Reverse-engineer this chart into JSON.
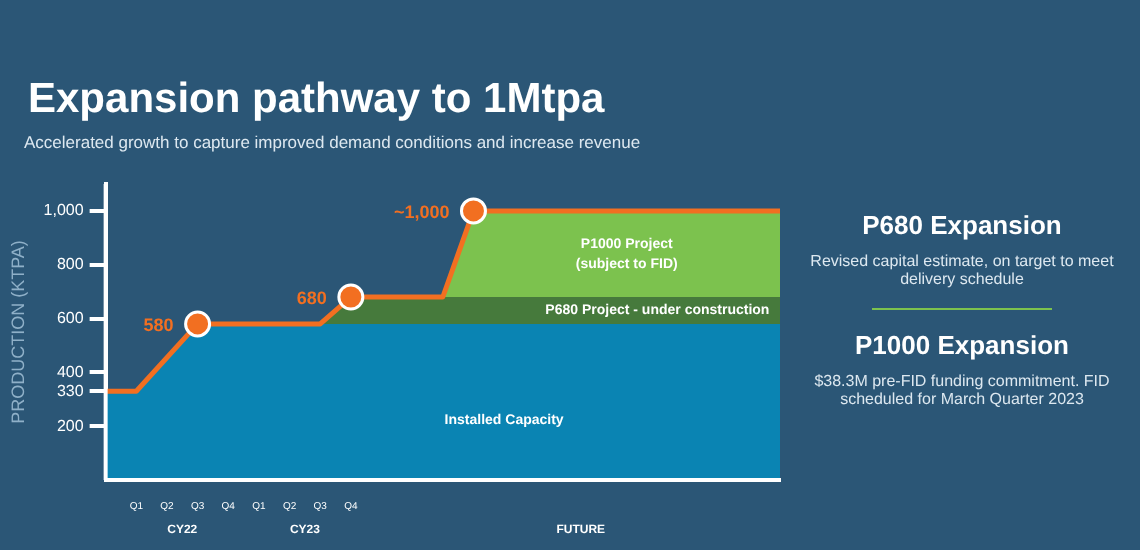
{
  "chart_data": {
    "type": "area",
    "title": "Expansion pathway to 1Mtpa",
    "subtitle": "Accelerated growth to capture improved demand conditions and increase revenue",
    "ylabel": "PRODUCTION (KTPA)",
    "categories": [
      null,
      "Q1",
      "Q2",
      "Q3",
      "Q4",
      "Q1",
      "Q2",
      "Q3",
      "Q4",
      null,
      null,
      null,
      null,
      null,
      null,
      null,
      null,
      null,
      null,
      null,
      null,
      null,
      null
    ],
    "stacked": true,
    "series": [
      {
        "name": "Installed Capacity",
        "color": "#0a84b3",
        "values": [
          330,
          330,
          null,
          580,
          580,
          580,
          580,
          580,
          580,
          580,
          580,
          580,
          580,
          580,
          580,
          580,
          580,
          580,
          580,
          580,
          580,
          580,
          580
        ]
      },
      {
        "name": "P680 Project - under construction",
        "color": "#467a3c",
        "values": [
          0,
          0,
          0,
          0,
          0,
          0,
          0,
          0,
          100,
          100,
          100,
          100,
          100,
          100,
          100,
          100,
          100,
          100,
          100,
          100,
          100,
          100,
          100
        ]
      },
      {
        "name": "P1000 Project (subject to FID)",
        "color": "#7cc24e",
        "values": [
          0,
          0,
          0,
          0,
          0,
          0,
          0,
          0,
          0,
          0,
          0,
          0,
          320,
          320,
          320,
          320,
          320,
          320,
          320,
          320,
          320,
          320,
          320
        ]
      },
      {
        "type": "line",
        "color": "#f26f21",
        "values": [
          330,
          330,
          null,
          580,
          580,
          580,
          580,
          580,
          680,
          680,
          680,
          680,
          1000,
          1000,
          1000,
          1000,
          1000,
          1000,
          1000,
          1000,
          1000,
          1000,
          1000
        ]
      },
      {
        "type": "scatter",
        "color": "#f26f21",
        "marker": "circle",
        "values": [
          null,
          null,
          null,
          580,
          null,
          null,
          null,
          null,
          680,
          null,
          null,
          null,
          1000,
          null,
          null,
          null,
          null,
          null,
          null,
          null,
          null,
          null,
          null
        ],
        "value_labels": [
          null,
          null,
          null,
          "580",
          null,
          null,
          null,
          null,
          "680",
          null,
          null,
          null,
          "~1,000",
          null,
          null,
          null,
          null,
          null,
          null,
          null,
          null,
          null,
          null
        ]
      }
    ],
    "ylim": [
      0,
      1100
    ],
    "yticks": [
      200,
      330,
      400,
      600,
      800,
      {
        "value": 1000,
        "label": "1,000"
      }
    ],
    "grid": false,
    "legend": false,
    "annotations": [
      "CY22",
      "CY23",
      "FUTURE",
      "P680 Expansion",
      "Revised capital estimate, on target to meet delivery schedule",
      "P1000 Expansion",
      "$38.3M pre-FID funding commitment. FID scheduled for March Quarter 2023"
    ]
  }
}
